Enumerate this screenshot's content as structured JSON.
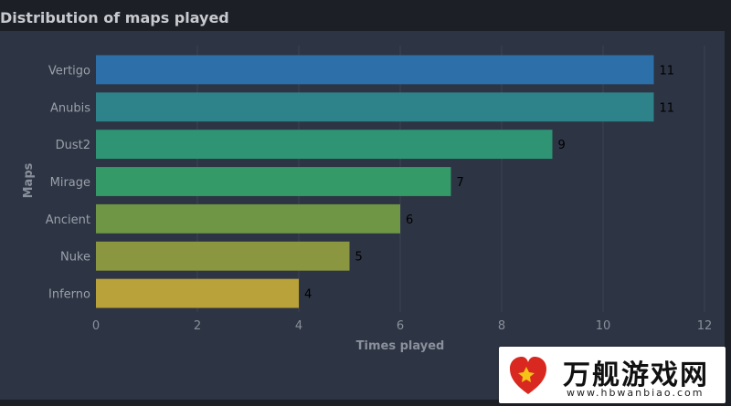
{
  "chart_data": {
    "type": "bar",
    "orientation": "horizontal",
    "title": "Distribution of maps played",
    "xlabel": "Times played",
    "ylabel": "Maps",
    "categories": [
      "Vertigo",
      "Anubis",
      "Dust2",
      "Mirage",
      "Ancient",
      "Nuke",
      "Inferno"
    ],
    "values": [
      11,
      11,
      9,
      7,
      6,
      5,
      4
    ],
    "colors": [
      "#2d6fa8",
      "#2e8289",
      "#2e9474",
      "#349a68",
      "#6e9644",
      "#8b9640",
      "#b9a23a"
    ],
    "xlim": [
      0,
      12
    ],
    "xticks": [
      0,
      2,
      4,
      6,
      8,
      10,
      12
    ],
    "grid": true,
    "data_labels": true
  },
  "watermark": {
    "brand": "万舰游戏网",
    "url": "www.hbwanbiao.com"
  }
}
